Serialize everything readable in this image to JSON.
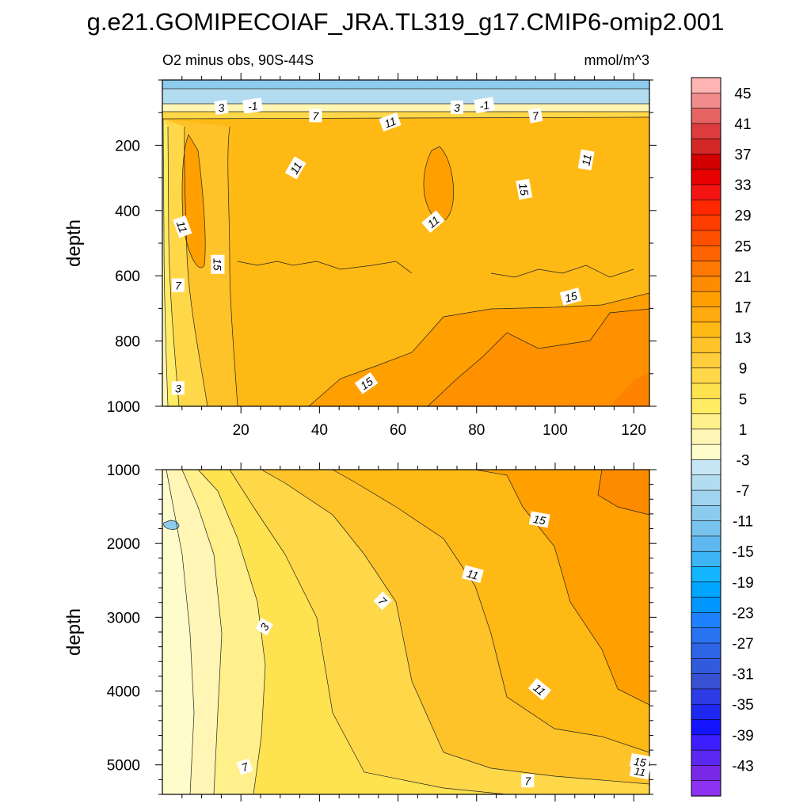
{
  "figure": {
    "title": "g.e21.GOMIPECOIAF_JRA.TL319_g17.CMIP6-omip2.001",
    "subtitle_left": "O2 minus obs, 90S-44S",
    "subtitle_right": "mmol/m^3"
  },
  "chart_data": [
    {
      "type": "heatmap",
      "panel": "upper",
      "ylabel": "depth",
      "xlabel": "",
      "xlim": [
        0,
        124
      ],
      "ylim": [
        1000,
        0
      ],
      "x_ticks": [
        20,
        40,
        60,
        80,
        100,
        120
      ],
      "x_tick_labels": [
        "20",
        "40",
        "60",
        "80",
        "100",
        "120"
      ],
      "y_ticks": [
        200,
        400,
        600,
        800,
        1000
      ],
      "y_tick_labels": [
        "200",
        "400",
        "600",
        "800",
        "1000"
      ],
      "contour_labels": [
        {
          "text": "3",
          "x": 15,
          "y": 85,
          "rot": -8
        },
        {
          "text": "-1",
          "x": 23,
          "y": 80,
          "rot": -8
        },
        {
          "text": "7",
          "x": 39,
          "y": 110,
          "rot": 0
        },
        {
          "text": "11",
          "x": 58,
          "y": 130,
          "rot": -20
        },
        {
          "text": "3",
          "x": 75,
          "y": 85,
          "rot": 0
        },
        {
          "text": "-1",
          "x": 82,
          "y": 78,
          "rot": -10
        },
        {
          "text": "7",
          "x": 95,
          "y": 110,
          "rot": -10
        },
        {
          "text": "11",
          "x": 34,
          "y": 270,
          "rot": -60
        },
        {
          "text": "11",
          "x": 108,
          "y": 245,
          "rot": -80
        },
        {
          "text": "15",
          "x": 92,
          "y": 335,
          "rot": 80
        },
        {
          "text": "11",
          "x": 69,
          "y": 435,
          "rot": -40
        },
        {
          "text": "11",
          "x": 5,
          "y": 450,
          "rot": 70
        },
        {
          "text": "15",
          "x": 14,
          "y": 565,
          "rot": 90
        },
        {
          "text": "7",
          "x": 4,
          "y": 630,
          "rot": 0
        },
        {
          "text": "15",
          "x": 104,
          "y": 665,
          "rot": -15
        },
        {
          "text": "15",
          "x": 52,
          "y": 930,
          "rot": -35
        },
        {
          "text": "3",
          "x": 4,
          "y": 945,
          "rot": 0
        }
      ]
    },
    {
      "type": "heatmap",
      "panel": "lower",
      "ylabel": "depth",
      "xlabel": "",
      "xlim": [
        0,
        124
      ],
      "ylim": [
        5400,
        1000
      ],
      "x_ticks": [
        20,
        40,
        60,
        80,
        100,
        120
      ],
      "x_tick_labels": [],
      "y_ticks": [
        1000,
        2000,
        3000,
        4000,
        5000
      ],
      "y_tick_labels": [
        "1000",
        "2000",
        "3000",
        "4000",
        "5000"
      ],
      "contour_labels": [
        {
          "text": "15",
          "x": 96,
          "y": 1680,
          "rot": 10
        },
        {
          "text": "11",
          "x": 79,
          "y": 2420,
          "rot": 15
        },
        {
          "text": "7",
          "x": 56,
          "y": 2780,
          "rot": 45
        },
        {
          "text": "3",
          "x": 26,
          "y": 3130,
          "rot": -60
        },
        {
          "text": "11",
          "x": 96,
          "y": 3980,
          "rot": 40
        },
        {
          "text": "7",
          "x": 21,
          "y": 5030,
          "rot": -20
        },
        {
          "text": "7",
          "x": 93,
          "y": 5220,
          "rot": 0
        },
        {
          "text": "11",
          "x": 130,
          "y": 5090,
          "rot": 10
        },
        {
          "text": "15",
          "x": 144,
          "y": 4960,
          "rot": 10
        }
      ]
    }
  ],
  "colorbar": {
    "labels": [
      "45",
      "41",
      "37",
      "33",
      "29",
      "25",
      "21",
      "17",
      "13",
      "9",
      "5",
      "1",
      "-3",
      "-7",
      "-11",
      "-15",
      "-19",
      "-23",
      "-27",
      "-31",
      "-35",
      "-39",
      "-43"
    ],
    "colors": [
      "#ffb4b4",
      "#f08c8c",
      "#e66464",
      "#dc3c3c",
      "#d22828",
      "#d20000",
      "#e60000",
      "#f51414",
      "#ff2800",
      "#ff3c00",
      "#ff5000",
      "#ff6400",
      "#ff7800",
      "#ff8c00",
      "#ffa000",
      "#ffaa10",
      "#ffb914",
      "#ffc32a",
      "#ffcd3c",
      "#ffd84a",
      "#ffe250",
      "#ffeb64",
      "#fff08c",
      "#fff5b4",
      "#fffccc",
      "#c6e6f5",
      "#b4dcf0",
      "#9fd3ef",
      "#8ccbee",
      "#78c3ee",
      "#5fb9f0",
      "#3cb4f5",
      "#14b4ff",
      "#00a5ff",
      "#0096ff",
      "#1e82ff",
      "#2873f0",
      "#2d64e6",
      "#325adc",
      "#3a50d2",
      "#2d3ce6",
      "#1e28f0",
      "#1414ff",
      "#3c1eff",
      "#5a28f0",
      "#7828e6",
      "#8c32f0"
    ]
  }
}
